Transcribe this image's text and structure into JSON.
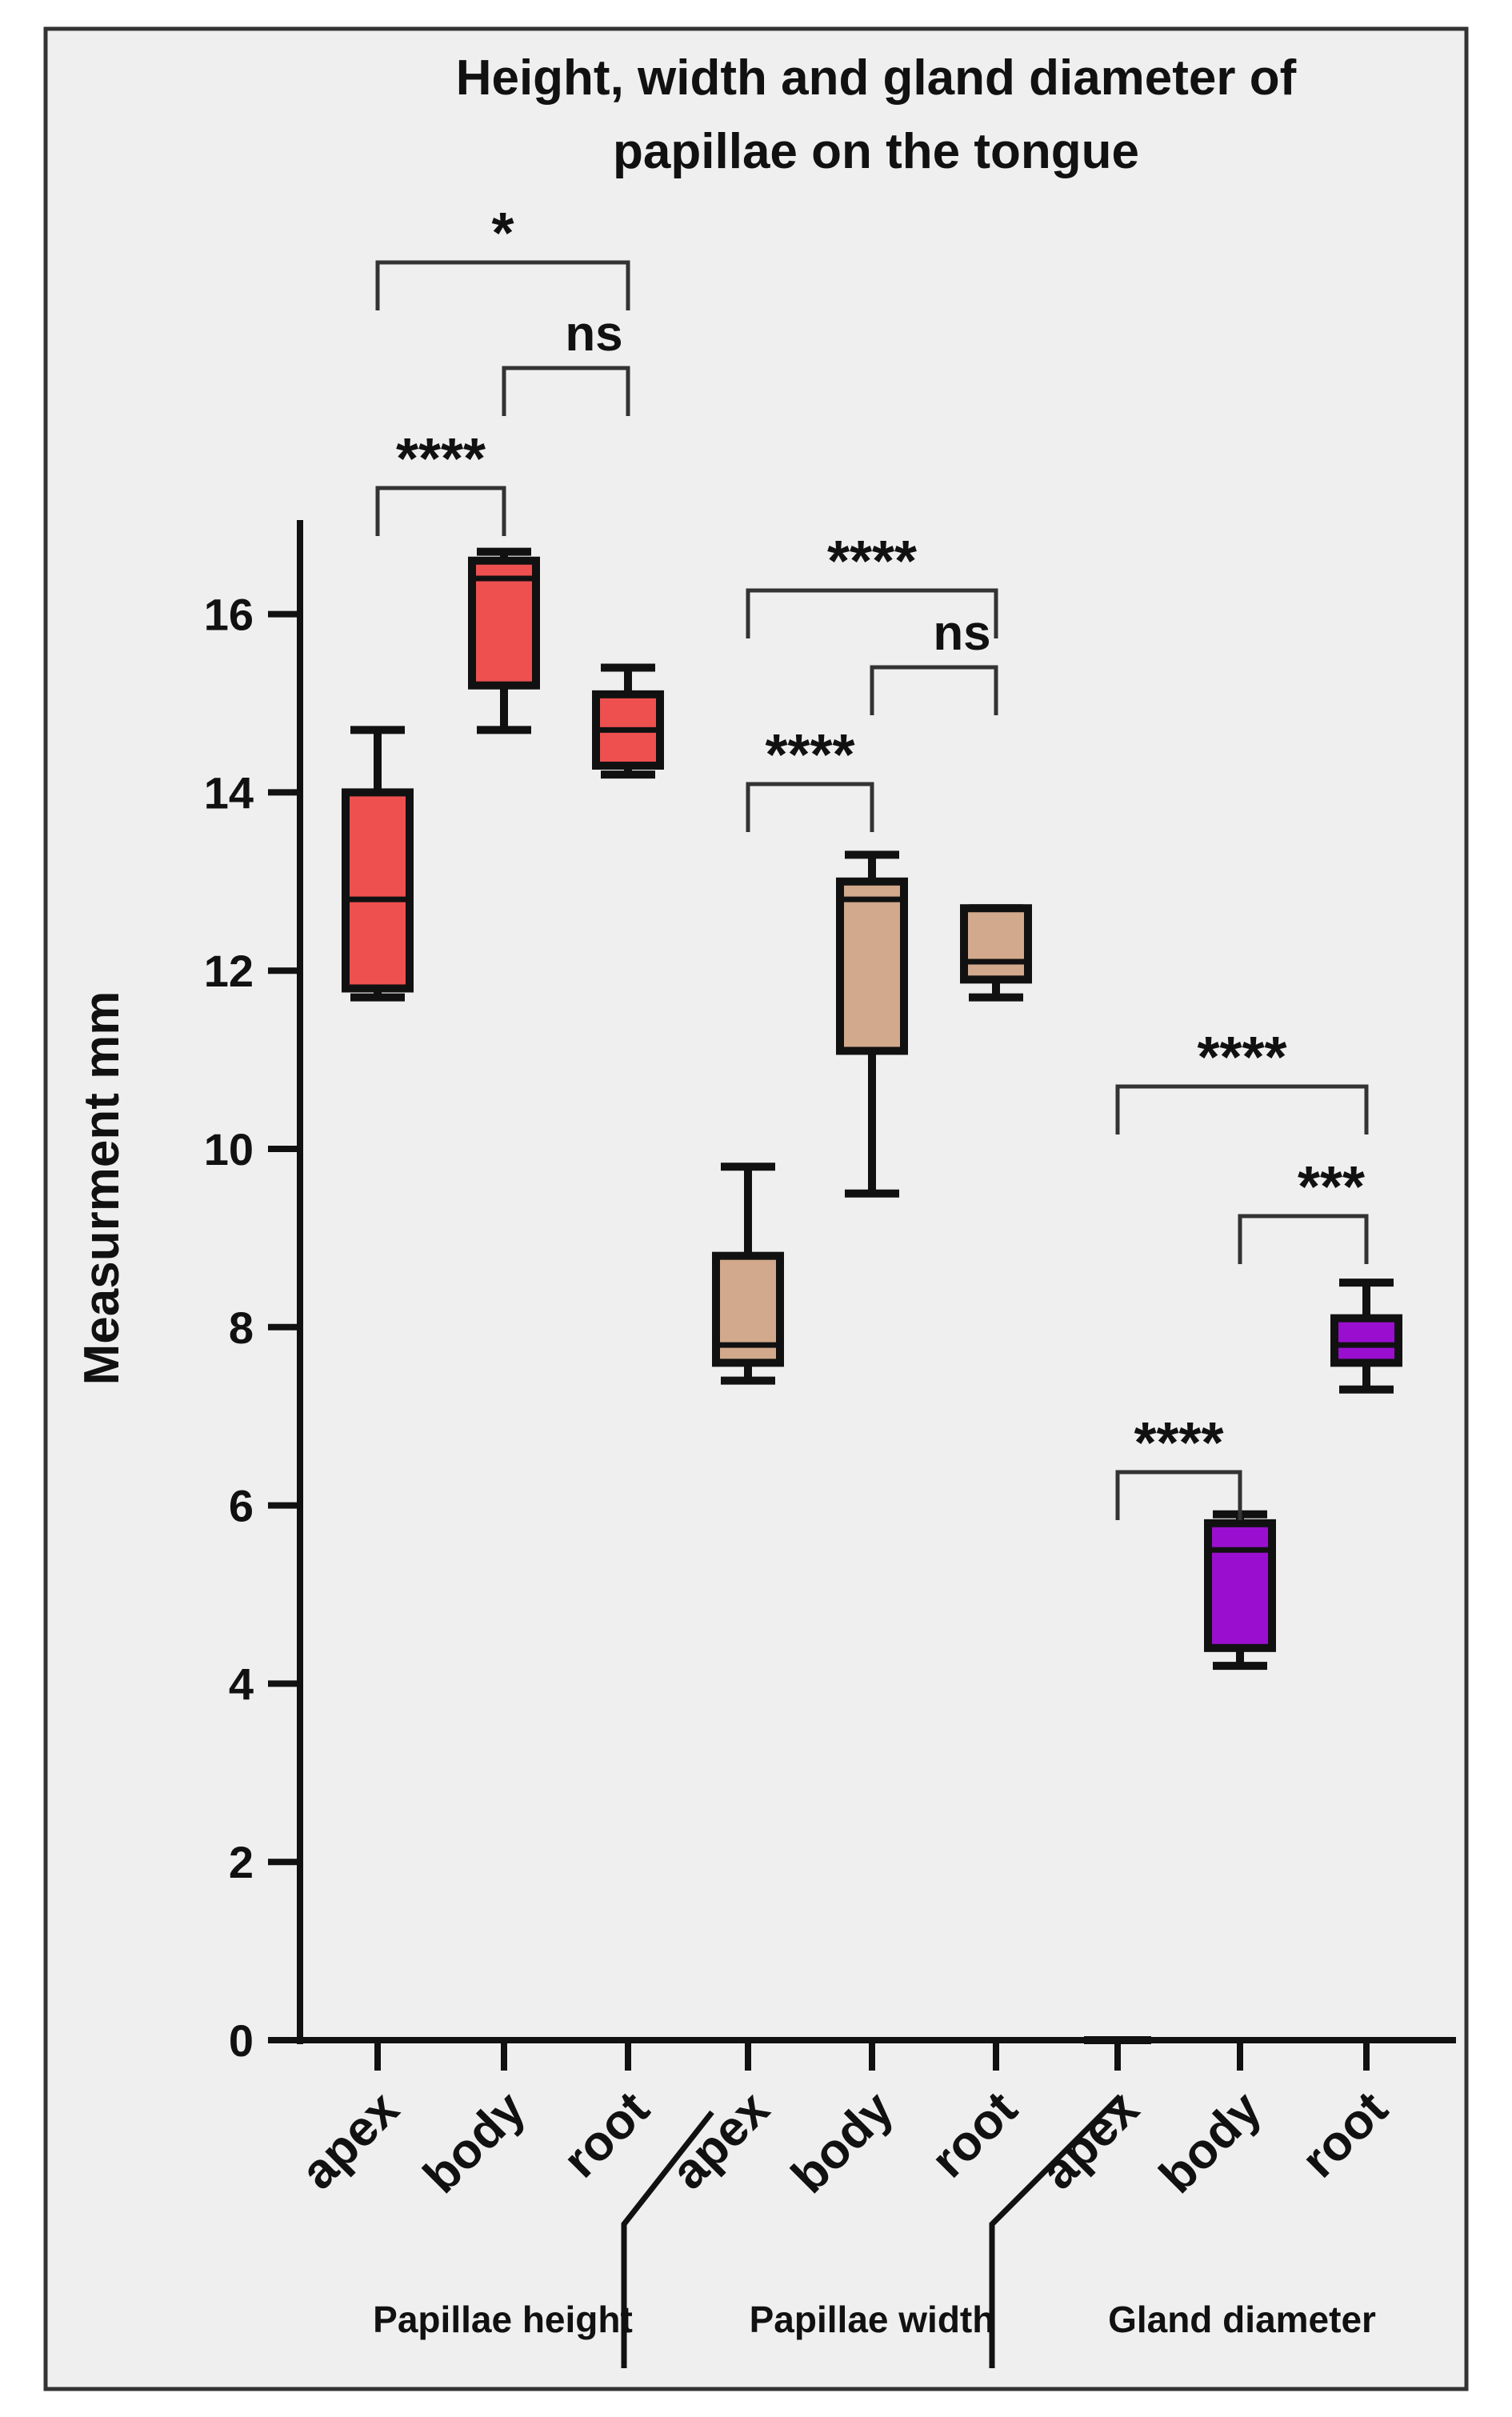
{
  "chart_data": {
    "type": "box",
    "title": "Height, width and gland diameter of papillae on the tongue",
    "title_lines": [
      "Height, width and gland diameter of",
      "papillae on the tongue"
    ],
    "ylabel": "Measurment mm",
    "xlabel": "",
    "ylim": [
      0,
      17
    ],
    "yticks": [
      0,
      2,
      4,
      6,
      8,
      10,
      12,
      14,
      16
    ],
    "grid": false,
    "background": "#efefef",
    "groups": [
      {
        "name": "Papillae height",
        "color": "#ee5050",
        "boxes": [
          {
            "label": "apex",
            "min": 11.7,
            "q1": 11.8,
            "median": 12.8,
            "q3": 14.0,
            "max": 14.7
          },
          {
            "label": "body",
            "min": 14.7,
            "q1": 15.2,
            "median": 16.4,
            "q3": 16.6,
            "max": 16.7
          },
          {
            "label": "root",
            "min": 14.2,
            "q1": 14.3,
            "median": 14.7,
            "q3": 15.1,
            "max": 15.4
          }
        ]
      },
      {
        "name": "Papillae width",
        "color": "#d2a98c",
        "boxes": [
          {
            "label": "apex",
            "min": 7.4,
            "q1": 7.6,
            "median": 7.8,
            "q3": 8.8,
            "max": 9.8
          },
          {
            "label": "body",
            "min": 9.5,
            "q1": 11.1,
            "median": 12.8,
            "q3": 13.0,
            "max": 13.3
          },
          {
            "label": "root",
            "min": 11.7,
            "q1": 11.9,
            "median": 12.1,
            "q3": 12.7,
            "max": 12.7
          }
        ]
      },
      {
        "name": "Gland diameter",
        "color": "#9a0fcf",
        "boxes": [
          {
            "label": "apex",
            "min": 0.0,
            "q1": 0.0,
            "median": 0.0,
            "q3": 0.0,
            "max": 0.0
          },
          {
            "label": "body",
            "min": 4.2,
            "q1": 4.4,
            "median": 5.5,
            "q3": 5.8,
            "max": 5.9
          },
          {
            "label": "root",
            "min": 7.3,
            "q1": 7.6,
            "median": 7.8,
            "q3": 8.1,
            "max": 8.5
          }
        ]
      }
    ],
    "significance": [
      {
        "from": 0,
        "to": 2,
        "label": "*",
        "level": 0
      },
      {
        "from": 1,
        "to": 2,
        "label": "ns",
        "level": 1
      },
      {
        "from": 0,
        "to": 1,
        "label": "****",
        "level": 2
      },
      {
        "from": 3,
        "to": 5,
        "label": "****",
        "level": 0
      },
      {
        "from": 4,
        "to": 5,
        "label": "ns",
        "level": 1
      },
      {
        "from": 3,
        "to": 4,
        "label": "****",
        "level": 2
      },
      {
        "from": 6,
        "to": 8,
        "label": "****",
        "level": 0
      },
      {
        "from": 7,
        "to": 8,
        "label": "***",
        "level": 1
      },
      {
        "from": 6,
        "to": 7,
        "label": "****",
        "level": 2
      }
    ]
  }
}
